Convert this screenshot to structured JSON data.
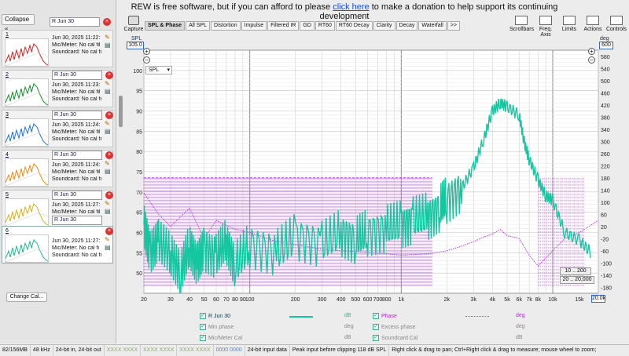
{
  "banner": {
    "text_before": "REW is free software, but if you can afford to please ",
    "link": "click here",
    "text_after": " to make a donation to help support its continuing development"
  },
  "left_panel": {
    "collapse_label": "Collapse",
    "top_name": "R Jun 30",
    "change_cal_label": "Change Cal...",
    "measurements": [
      {
        "num": "1",
        "name": "R Jun 30",
        "time": "Jun 30, 2025 11:22:",
        "mic": "Mic/Meter: No cal fil",
        "sound": "Soundcard: No cal fi",
        "color": "#d42020"
      },
      {
        "num": "2",
        "name": "R Jun 30",
        "time": "Jun 30, 2025 11:23:",
        "mic": "Mic/Meter: No cal fil",
        "sound": "Soundcard: No cal fi",
        "color": "#168c2c"
      },
      {
        "num": "3",
        "name": "R Jun 30",
        "time": "Jun 30, 2025 11:24:",
        "mic": "Mic/Meter: No cal fil",
        "sound": "Soundcard: No cal fi",
        "color": "#1a72d8"
      },
      {
        "num": "4",
        "name": "R Jun 30",
        "time": "Jun 30, 2025 11:24:",
        "mic": "Mic/Meter: No cal fil",
        "sound": "Soundcard: No cal fi",
        "color": "#ec8a12"
      },
      {
        "num": "5",
        "name": "R Jun 30",
        "time": "Jun 30, 2025 11:27:",
        "mic": "Mic/Meter: No cal fil",
        "sound": "Soundcard: No cal fi",
        "color": "#d6b012"
      },
      {
        "num": "6",
        "name": "R Jun 30",
        "time": "Jun 30, 2025 11:27:",
        "mic": "Mic/Meter: No cal fi",
        "sound": "Soundcard: No cal fi",
        "color": "#1ab890"
      }
    ]
  },
  "toolbar": {
    "capture_label": "Capture",
    "tabs": [
      "SPL & Phase",
      "All SPL",
      "Distortion",
      "Impulse",
      "Filtered IR",
      "GD",
      "RT60",
      "RT60 Decay",
      "Clarity",
      "Decay",
      "Waterfall",
      ">>"
    ],
    "tools": [
      "Scrollbars",
      "Freq. Axis",
      "Limits",
      "Actions",
      "Controls"
    ]
  },
  "axes": {
    "left_unit": "SPL",
    "right_unit": "deg",
    "left_top_value": "105.0",
    "right_top_value": "600",
    "mode_select": "SPL",
    "right_bottom_value": "20.0k",
    "range_a": "10 .. 200",
    "range_b": "20 .. 20,000"
  },
  "legend": {
    "row1": {
      "name": "R Jun 30",
      "unit": "dB",
      "phase_label": "Phase",
      "phase_unit": "deg"
    },
    "row2": {
      "left": "Min phase",
      "left_unit": "deg",
      "right": "Excess phase",
      "right_unit": "deg"
    },
    "row3": {
      "left": "Mic/Meter Cal",
      "left_unit": "dB",
      "right": "Soundcard Cal",
      "right_unit": "dB"
    }
  },
  "status": {
    "memory": "82/156MB",
    "rate": "48 kHz",
    "bits": "24-bit in, 24-bit out",
    "ind1": "XXXX XXXX",
    "ind2": "XXXX XXXX",
    "ind3": "XXXX XXXX",
    "ind4": "0000 0000",
    "input": "24-bit input data",
    "peak": "Peak input before clipping 118 dB SPL",
    "hint": "Right click & drag to pan; Ctrl+Right click & drag to measure; mouse wheel to zoom;"
  },
  "chart_data": {
    "type": "line",
    "x_scale": "log",
    "x_range": [
      20,
      20000
    ],
    "x_ticks": [
      "20",
      "30",
      "40",
      "50",
      "60",
      "70",
      "80",
      "90",
      "100",
      "200",
      "300",
      "400",
      "500",
      "600",
      "700",
      "800",
      "1k",
      "2k",
      "3k",
      "4k",
      "5k",
      "6k",
      "7k",
      "8k",
      "10k",
      "15k",
      "20.0k"
    ],
    "y_left_range": [
      45,
      105
    ],
    "y_left_ticks": [
      "100",
      "95",
      "90",
      "85",
      "80",
      "75",
      "70",
      "65",
      "60",
      "55",
      "50"
    ],
    "y_right_range": [
      -200,
      600
    ],
    "y_right_ticks": [
      "580",
      "540",
      "500",
      "460",
      "420",
      "380",
      "340",
      "300",
      "260",
      "220",
      "180",
      "140",
      "100",
      "60",
      "20",
      "-20",
      "-60",
      "-100",
      "-140",
      "-180"
    ],
    "grid": true,
    "series": [
      {
        "name": "R Jun 30",
        "axis": "left",
        "color": "#14c7a0",
        "x": [
          20,
          22,
          25,
          30,
          35,
          40,
          45,
          50,
          60,
          70,
          80,
          100,
          150,
          200,
          300,
          400,
          500,
          600,
          800,
          1000,
          1200,
          1500,
          1800,
          2000,
          2500,
          3000,
          3500,
          4000,
          4500,
          5000,
          6000,
          6500,
          7000,
          8000,
          9000,
          10000,
          12000,
          15000,
          18000
        ],
        "y": [
          62,
          55,
          58,
          55,
          50,
          57,
          52,
          56,
          54,
          58,
          52,
          57,
          55,
          59,
          57,
          60,
          58,
          60,
          61,
          62,
          63,
          64,
          66,
          68,
          71,
          76,
          83,
          90,
          92,
          91,
          89,
          82,
          78,
          73,
          69,
          68,
          60,
          58,
          55
        ]
      },
      {
        "name": "Phase",
        "axis": "right",
        "color": "#b93ee6",
        "x": [
          20,
          25,
          30,
          40,
          50,
          60,
          80,
          100,
          150,
          200,
          300,
          400,
          600,
          800,
          1000,
          1500,
          2000,
          2500,
          3000,
          3500,
          4000,
          4500,
          5000,
          6000,
          7000,
          8000,
          10000,
          12000,
          15000,
          20000
        ],
        "y": [
          130,
          60,
          20,
          80,
          -20,
          40,
          10,
          0,
          -30,
          -40,
          -55,
          -60,
          -65,
          -70,
          -75,
          -70,
          -60,
          -45,
          -30,
          -15,
          -5,
          10,
          -10,
          -20,
          -75,
          -110,
          -60,
          -20,
          0,
          40
        ]
      }
    ]
  }
}
